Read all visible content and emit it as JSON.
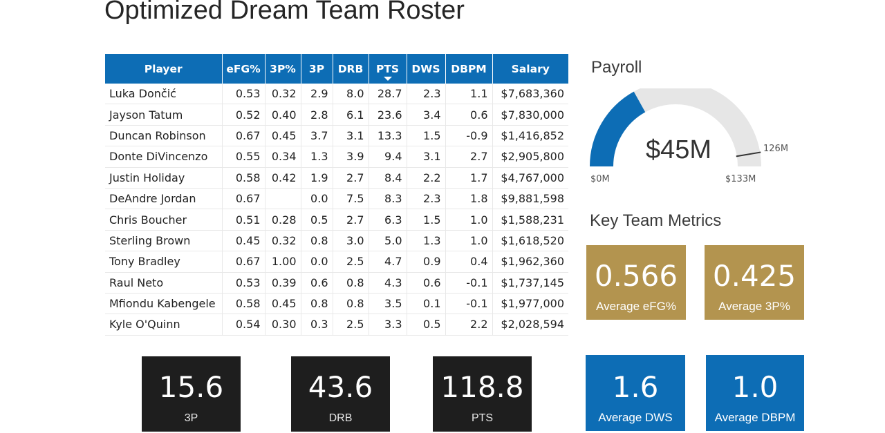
{
  "title": "Optimized Dream Team Roster",
  "table": {
    "columns": [
      "Player",
      "eFG%",
      "3P%",
      "3P",
      "DRB",
      "PTS",
      "DWS",
      "DBPM",
      "Salary"
    ],
    "sorted_column": "PTS",
    "rows": [
      [
        "Luka Dončić",
        "0.53",
        "0.32",
        "2.9",
        "8.0",
        "28.7",
        "2.3",
        "1.1",
        "$7,683,360"
      ],
      [
        "Jayson Tatum",
        "0.52",
        "0.40",
        "2.8",
        "6.1",
        "23.6",
        "3.4",
        "0.6",
        "$7,830,000"
      ],
      [
        "Duncan Robinson",
        "0.67",
        "0.45",
        "3.7",
        "3.1",
        "13.3",
        "1.5",
        "-0.9",
        "$1,416,852"
      ],
      [
        "Donte DiVincenzo",
        "0.55",
        "0.34",
        "1.3",
        "3.9",
        "9.4",
        "3.1",
        "2.7",
        "$2,905,800"
      ],
      [
        "Justin Holiday",
        "0.58",
        "0.42",
        "1.9",
        "2.7",
        "8.4",
        "2.2",
        "1.7",
        "$4,767,000"
      ],
      [
        "DeAndre Jordan",
        "0.67",
        "",
        "0.0",
        "7.5",
        "8.3",
        "2.3",
        "1.8",
        "$9,881,598"
      ],
      [
        "Chris Boucher",
        "0.51",
        "0.28",
        "0.5",
        "2.7",
        "6.3",
        "1.5",
        "1.0",
        "$1,588,231"
      ],
      [
        "Sterling Brown",
        "0.45",
        "0.32",
        "0.8",
        "3.0",
        "5.0",
        "1.3",
        "1.0",
        "$1,618,520"
      ],
      [
        "Tony Bradley",
        "0.67",
        "1.00",
        "0.0",
        "2.5",
        "4.7",
        "0.9",
        "0.4",
        "$1,962,360"
      ],
      [
        "Raul Neto",
        "0.53",
        "0.39",
        "0.6",
        "0.8",
        "4.3",
        "0.6",
        "-0.1",
        "$1,737,145"
      ],
      [
        "Mfiondu Kabengele",
        "0.58",
        "0.45",
        "0.8",
        "0.8",
        "3.5",
        "0.1",
        "-0.1",
        "$1,977,000"
      ],
      [
        "Kyle O'Quinn",
        "0.54",
        "0.30",
        "0.3",
        "2.5",
        "3.3",
        "0.5",
        "2.2",
        "$2,028,594"
      ]
    ]
  },
  "payroll": {
    "title": "Payroll",
    "value_label": "$45M",
    "min_label": "$0M",
    "max_label": "$133M",
    "target_label": "126M",
    "value": 45,
    "min": 0,
    "max": 133,
    "target": 126,
    "fill_color": "#0d6db5",
    "track_color": "#e6e6e6"
  },
  "metrics": {
    "title": "Key Team Metrics",
    "efg": {
      "value": "0.566",
      "label": "Average eFG%"
    },
    "three_pct": {
      "value": "0.425",
      "label": "Average 3P%"
    }
  },
  "totals": {
    "three_p": {
      "value": "15.6",
      "label": "3P"
    },
    "drb": {
      "value": "43.6",
      "label": "DRB"
    },
    "pts": {
      "value": "118.8",
      "label": "PTS"
    },
    "dws": {
      "value": "1.6",
      "label": "Average DWS"
    },
    "dbpm": {
      "value": "1.0",
      "label": "Average DBPM"
    }
  },
  "colors": {
    "header_blue": "#0d6db5",
    "gold": "#b3944f",
    "dark": "#1e1e1e"
  }
}
